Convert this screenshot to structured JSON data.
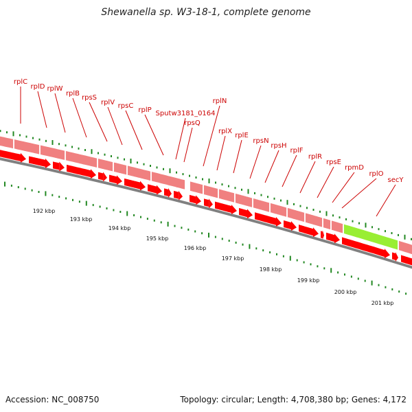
{
  "title": "Shewanella sp. W3-18-1, complete genome",
  "footer": {
    "accession": "Accession: NC_008750",
    "summary": "Topology: circular; Length: 4,708,380 bp; Genes: 4,172"
  },
  "colors": {
    "gene_label": "#cc0000",
    "gene_fill": "#ff0000",
    "segment_fill": "#f08080",
    "highlight_segment": "#99ee33",
    "tick": "#228822",
    "backbone": "#808080"
  },
  "genes": [
    {
      "name": "rplC"
    },
    {
      "name": "rplD"
    },
    {
      "name": "rplW"
    },
    {
      "name": "rplB"
    },
    {
      "name": "rpsS"
    },
    {
      "name": "rplV"
    },
    {
      "name": "rpsC"
    },
    {
      "name": "rplP"
    },
    {
      "name": "Sputw3181_0164"
    },
    {
      "name": "rpsQ"
    },
    {
      "name": "rplN"
    },
    {
      "name": "rplX"
    },
    {
      "name": "rplE"
    },
    {
      "name": "rpsN"
    },
    {
      "name": "rpsH"
    },
    {
      "name": "rplF"
    },
    {
      "name": "rplR"
    },
    {
      "name": "rpsE"
    },
    {
      "name": "rpmD"
    },
    {
      "name": "rplO"
    },
    {
      "name": "secY"
    }
  ],
  "kbp_scale": [
    "192 kbp",
    "193 kbp",
    "194 kbp",
    "195 kbp",
    "196 kbp",
    "197 kbp",
    "198 kbp",
    "199 kbp",
    "200 kbp",
    "201 kbp"
  ]
}
